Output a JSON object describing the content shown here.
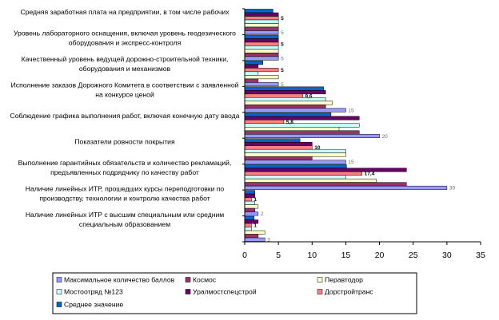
{
  "chart_data": {
    "type": "bar",
    "orientation": "horizontal",
    "categories": [
      "Средняя заработная плата на предприятии, в том числе рабочих",
      "Уровень лабораторного оснащения, включая уровень геодезического оборудования и экспресс-контроля",
      "Качественный уровень ведущей дорожно-строительной техники, оборудования и механизмов",
      "Исполнение заказов Дорожного Комитета в соответствии с заявленной на конкурсе ценой",
      "Соблюдение графика выполнения работ, включая конечную дату ввода",
      "Показатели ровности покрытия",
      "Выполнение гарантийных обязательств и количество рекламаций, предъявленных подрядчику по качеству работ",
      "Наличие линейных ИТР, прошедших курсы переподготовки по производству, технологии и контролю качества работ",
      "Наличие линейных ИТР с высшим специальным или средним специальным образованием"
    ],
    "series": [
      {
        "name": "Максимальное количество баллов",
        "color": "#9999ff",
        "values": [
          5,
          5,
          5,
          15,
          20,
          15,
          30,
          2,
          3
        ]
      },
      {
        "name": "Космос",
        "color": "#993366",
        "values": [
          5,
          5,
          2,
          12,
          17,
          10,
          24,
          1.5,
          2
        ]
      },
      {
        "name": "Перавтодор",
        "color": "#ffffcc",
        "values": [
          5,
          5,
          5,
          13,
          14,
          15,
          19.5,
          2,
          3
        ]
      },
      {
        "name": "Мостоотряд №123",
        "color": "#ccffff",
        "values": [
          5,
          5,
          2,
          12,
          17,
          15,
          15,
          1.5,
          1
        ]
      },
      {
        "name": "Уралмостспецстрой",
        "color": "#660066",
        "values": [
          5,
          5,
          2,
          12,
          17,
          10,
          24,
          1.5,
          2
        ]
      },
      {
        "name": "Дорстройтранс",
        "color": "#ff8080",
        "values": [
          5,
          5,
          5,
          8.6,
          5.8,
          10,
          17.4,
          1,
          1
        ]
      },
      {
        "name": "Среднее значение",
        "color": "#0066cc",
        "values": [
          4.2,
          5,
          2.7,
          11.7,
          12.8,
          8.2,
          15.1,
          1.5,
          1.4
        ]
      }
    ],
    "data_labels": [
      {
        "category": 0,
        "series": 0,
        "text": "5"
      },
      {
        "category": 1,
        "series": 0,
        "text": "5"
      },
      {
        "category": 2,
        "series": 0,
        "text": "5"
      },
      {
        "category": 3,
        "series": 0,
        "text": "15"
      },
      {
        "category": 4,
        "series": 0,
        "text": "20"
      },
      {
        "category": 5,
        "series": 0,
        "text": "15"
      },
      {
        "category": 6,
        "series": 0,
        "text": "30"
      },
      {
        "category": 7,
        "series": 0,
        "text": "2"
      },
      {
        "category": 8,
        "series": 0,
        "text": "3"
      },
      {
        "category": 0,
        "series": 5,
        "text": "5"
      },
      {
        "category": 1,
        "series": 5,
        "text": "5"
      },
      {
        "category": 2,
        "series": 5,
        "text": "5"
      },
      {
        "category": 3,
        "series": 5,
        "text": "8,6"
      },
      {
        "category": 4,
        "series": 5,
        "text": "5,8"
      },
      {
        "category": 5,
        "series": 5,
        "text": "10"
      },
      {
        "category": 6,
        "series": 5,
        "text": "17,4"
      },
      {
        "category": 7,
        "series": 5,
        "text": "1"
      },
      {
        "category": 8,
        "series": 5,
        "text": "1"
      }
    ],
    "xlim": [
      0,
      35
    ],
    "x_ticks": [
      0,
      5,
      10,
      15,
      20,
      25,
      30,
      35
    ],
    "grid": false,
    "legend_position": "bottom",
    "legend_order": [
      0,
      1,
      2,
      3,
      4,
      5,
      6
    ]
  }
}
